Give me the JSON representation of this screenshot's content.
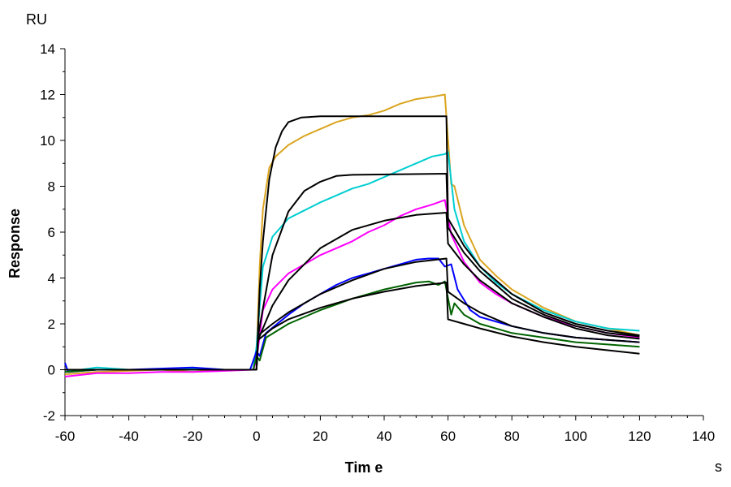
{
  "chart_data": {
    "type": "line",
    "title": "",
    "xlabel": "Tim e",
    "ylabel": "Response",
    "x_unit": "s",
    "y_unit": "RU",
    "xlim": [
      -60,
      140
    ],
    "ylim": [
      -2,
      14
    ],
    "xticks": [
      -60,
      -40,
      -20,
      0,
      20,
      40,
      60,
      80,
      100,
      120,
      140
    ],
    "yticks": [
      -2,
      0,
      2,
      4,
      6,
      8,
      10,
      12,
      14
    ],
    "grid": false,
    "series": [
      {
        "color": "#DAA520",
        "points": [
          [
            -60,
            -0.2
          ],
          [
            -50,
            -0.1
          ],
          [
            -40,
            -0.05
          ],
          [
            -30,
            0
          ],
          [
            -20,
            -0.1
          ],
          [
            -10,
            0
          ],
          [
            -1,
            0
          ],
          [
            0,
            0.5
          ],
          [
            1,
            4.5
          ],
          [
            2,
            7
          ],
          [
            4,
            8.8
          ],
          [
            6,
            9.3
          ],
          [
            10,
            9.8
          ],
          [
            15,
            10.2
          ],
          [
            20,
            10.5
          ],
          [
            25,
            10.8
          ],
          [
            30,
            11
          ],
          [
            35,
            11.1
          ],
          [
            40,
            11.3
          ],
          [
            45,
            11.6
          ],
          [
            50,
            11.8
          ],
          [
            55,
            11.9
          ],
          [
            59,
            12.0
          ],
          [
            61,
            8.1
          ],
          [
            62,
            8.0
          ],
          [
            65,
            6.3
          ],
          [
            70,
            4.8
          ],
          [
            75,
            4.1
          ],
          [
            80,
            3.5
          ],
          [
            90,
            2.7
          ],
          [
            100,
            2.1
          ],
          [
            110,
            1.8
          ],
          [
            120,
            1.5
          ]
        ]
      },
      {
        "color": "#00CED1",
        "points": [
          [
            -60,
            -0.1
          ],
          [
            -50,
            0.1
          ],
          [
            -40,
            0
          ],
          [
            -30,
            0
          ],
          [
            -20,
            0.05
          ],
          [
            -10,
            0
          ],
          [
            -1,
            0
          ],
          [
            0,
            1
          ],
          [
            2,
            4.5
          ],
          [
            5,
            5.8
          ],
          [
            10,
            6.6
          ],
          [
            15,
            6.95
          ],
          [
            20,
            7.3
          ],
          [
            25,
            7.6
          ],
          [
            30,
            7.9
          ],
          [
            35,
            8.1
          ],
          [
            40,
            8.4
          ],
          [
            45,
            8.7
          ],
          [
            50,
            9.0
          ],
          [
            55,
            9.3
          ],
          [
            59,
            9.4
          ],
          [
            60,
            9.5
          ],
          [
            62,
            7.0
          ],
          [
            65,
            5.6
          ],
          [
            70,
            4.5
          ],
          [
            75,
            3.8
          ],
          [
            80,
            3.3
          ],
          [
            90,
            2.6
          ],
          [
            100,
            2.1
          ],
          [
            110,
            1.8
          ],
          [
            120,
            1.7
          ]
        ]
      },
      {
        "color": "#FF00FF",
        "points": [
          [
            -60,
            -0.3
          ],
          [
            -50,
            -0.15
          ],
          [
            -40,
            -0.15
          ],
          [
            -30,
            -0.1
          ],
          [
            -20,
            -0.1
          ],
          [
            -10,
            -0.05
          ],
          [
            -1,
            0
          ],
          [
            0,
            0.4
          ],
          [
            2,
            2.6
          ],
          [
            5,
            3.5
          ],
          [
            10,
            4.2
          ],
          [
            15,
            4.6
          ],
          [
            20,
            5.0
          ],
          [
            25,
            5.3
          ],
          [
            30,
            5.6
          ],
          [
            35,
            6.0
          ],
          [
            40,
            6.3
          ],
          [
            45,
            6.7
          ],
          [
            50,
            7.0
          ],
          [
            55,
            7.2
          ],
          [
            59,
            7.4
          ],
          [
            61,
            5.9
          ],
          [
            65,
            4.7
          ],
          [
            70,
            3.8
          ],
          [
            75,
            3.3
          ],
          [
            80,
            2.9
          ],
          [
            90,
            2.3
          ],
          [
            100,
            1.9
          ],
          [
            110,
            1.6
          ],
          [
            120,
            1.4
          ]
        ]
      },
      {
        "color": "#0000FF",
        "points": [
          [
            -60,
            0.3
          ],
          [
            -59,
            -0.1
          ],
          [
            -50,
            0
          ],
          [
            -40,
            0
          ],
          [
            -30,
            0.05
          ],
          [
            -20,
            0.1
          ],
          [
            -10,
            0
          ],
          [
            -2,
            0
          ],
          [
            -1,
            0.4
          ],
          [
            0,
            0.8
          ],
          [
            1,
            0.6
          ],
          [
            3,
            1.6
          ],
          [
            10,
            2.4
          ],
          [
            15,
            2.9
          ],
          [
            20,
            3.3
          ],
          [
            25,
            3.7
          ],
          [
            30,
            4.0
          ],
          [
            35,
            4.2
          ],
          [
            40,
            4.4
          ],
          [
            45,
            4.6
          ],
          [
            50,
            4.8
          ],
          [
            54,
            4.85
          ],
          [
            57,
            4.85
          ],
          [
            59,
            4.5
          ],
          [
            61,
            4.6
          ],
          [
            63,
            3.5
          ],
          [
            67,
            2.6
          ],
          [
            70,
            2.3
          ],
          [
            80,
            1.9
          ],
          [
            90,
            1.6
          ],
          [
            100,
            1.4
          ],
          [
            110,
            1.3
          ],
          [
            120,
            1.2
          ]
        ]
      },
      {
        "color": "#006400",
        "points": [
          [
            -60,
            -0.1
          ],
          [
            -50,
            0
          ],
          [
            -40,
            0
          ],
          [
            -30,
            0
          ],
          [
            -20,
            0
          ],
          [
            -10,
            0
          ],
          [
            -1,
            0
          ],
          [
            0,
            0.6
          ],
          [
            1,
            0.4
          ],
          [
            3,
            1.4
          ],
          [
            10,
            2.0
          ],
          [
            15,
            2.3
          ],
          [
            20,
            2.6
          ],
          [
            25,
            2.85
          ],
          [
            30,
            3.1
          ],
          [
            35,
            3.3
          ],
          [
            40,
            3.5
          ],
          [
            45,
            3.65
          ],
          [
            50,
            3.8
          ],
          [
            54,
            3.85
          ],
          [
            57,
            3.7
          ],
          [
            59,
            3.85
          ],
          [
            61,
            2.4
          ],
          [
            62,
            2.9
          ],
          [
            65,
            2.4
          ],
          [
            70,
            2.0
          ],
          [
            80,
            1.6
          ],
          [
            90,
            1.4
          ],
          [
            100,
            1.2
          ],
          [
            110,
            1.1
          ],
          [
            120,
            1.0
          ]
        ]
      }
    ],
    "fits": [
      {
        "color": "#000000",
        "points": [
          [
            -60,
            0
          ],
          [
            0,
            0
          ],
          [
            1,
            3.5
          ],
          [
            2,
            5.6
          ],
          [
            4,
            8.3
          ],
          [
            6,
            9.7
          ],
          [
            8,
            10.4
          ],
          [
            10,
            10.8
          ],
          [
            14,
            11.0
          ],
          [
            20,
            11.05
          ],
          [
            59.5,
            11.05
          ],
          [
            60,
            6.6
          ],
          [
            65,
            5.4
          ],
          [
            70,
            4.5
          ],
          [
            80,
            3.3
          ],
          [
            90,
            2.5
          ],
          [
            100,
            2.0
          ],
          [
            110,
            1.7
          ],
          [
            120,
            1.5
          ]
        ]
      },
      {
        "color": "#000000",
        "points": [
          [
            0,
            0
          ],
          [
            0.5,
            1.5
          ],
          [
            5,
            5.0
          ],
          [
            10,
            6.9
          ],
          [
            15,
            7.8
          ],
          [
            20,
            8.2
          ],
          [
            25,
            8.45
          ],
          [
            30,
            8.5
          ],
          [
            59.5,
            8.55
          ],
          [
            60,
            6.2
          ],
          [
            65,
            5.1
          ],
          [
            70,
            4.3
          ],
          [
            80,
            3.1
          ],
          [
            90,
            2.4
          ],
          [
            100,
            1.9
          ],
          [
            110,
            1.6
          ],
          [
            120,
            1.45
          ]
        ]
      },
      {
        "color": "#000000",
        "points": [
          [
            0,
            0
          ],
          [
            0.5,
            1.3
          ],
          [
            5,
            2.8
          ],
          [
            10,
            3.9
          ],
          [
            20,
            5.3
          ],
          [
            30,
            6.1
          ],
          [
            40,
            6.5
          ],
          [
            50,
            6.75
          ],
          [
            59.5,
            6.85
          ],
          [
            60,
            5.5
          ],
          [
            65,
            4.6
          ],
          [
            70,
            3.9
          ],
          [
            80,
            2.9
          ],
          [
            90,
            2.3
          ],
          [
            100,
            1.8
          ],
          [
            110,
            1.5
          ],
          [
            120,
            1.35
          ]
        ]
      },
      {
        "color": "#000000",
        "points": [
          [
            0,
            0
          ],
          [
            0.5,
            1.5
          ],
          [
            5,
            2.0
          ],
          [
            10,
            2.5
          ],
          [
            20,
            3.3
          ],
          [
            30,
            3.9
          ],
          [
            40,
            4.4
          ],
          [
            50,
            4.7
          ],
          [
            59.5,
            4.85
          ],
          [
            60,
            3.4
          ],
          [
            65,
            2.9
          ],
          [
            70,
            2.5
          ],
          [
            80,
            1.9
          ],
          [
            90,
            1.6
          ],
          [
            100,
            1.4
          ],
          [
            110,
            1.3
          ],
          [
            120,
            1.2
          ]
        ]
      },
      {
        "color": "#000000",
        "points": [
          [
            0,
            0
          ],
          [
            0.5,
            1.3
          ],
          [
            5,
            1.8
          ],
          [
            10,
            2.2
          ],
          [
            20,
            2.7
          ],
          [
            30,
            3.1
          ],
          [
            40,
            3.4
          ],
          [
            50,
            3.65
          ],
          [
            59.5,
            3.8
          ],
          [
            60,
            2.2
          ],
          [
            65,
            2.0
          ],
          [
            70,
            1.8
          ],
          [
            80,
            1.45
          ],
          [
            90,
            1.2
          ],
          [
            100,
            1.0
          ],
          [
            110,
            0.85
          ],
          [
            120,
            0.7
          ]
        ]
      }
    ]
  }
}
